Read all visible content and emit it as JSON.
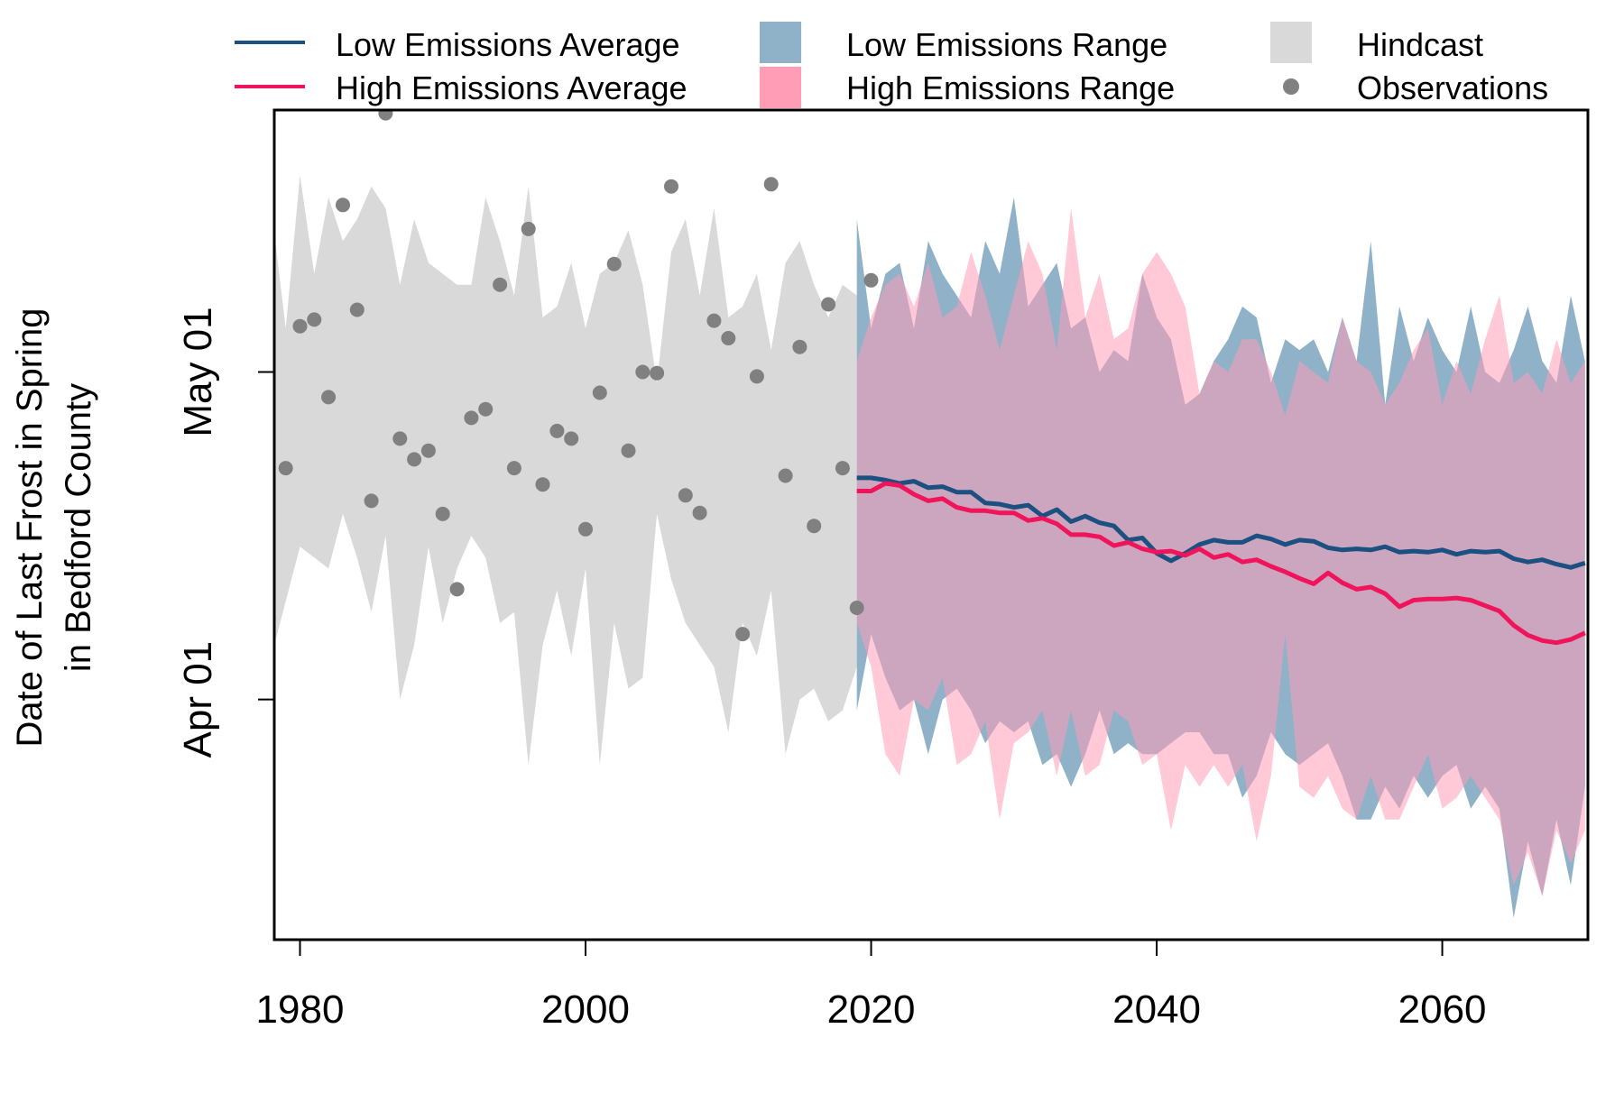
{
  "chart_data": {
    "type": "area",
    "ylabel_line1": "Date of Last Frost in Spring",
    "ylabel_line2": "in Bedford County",
    "xlabel": "",
    "xlim": [
      1978.2,
      2070.2
    ],
    "x_ticks": [
      1980,
      2000,
      2020,
      2040,
      2060
    ],
    "y_unit": "day of year",
    "ylim": [
      69,
      145
    ],
    "y_ticks": [
      {
        "value": 91,
        "label": "Apr 01"
      },
      {
        "value": 121,
        "label": "May 01"
      }
    ],
    "grid": false,
    "legend_position": "top",
    "legend": [
      {
        "label": "Low Emissions Average",
        "kind": "line",
        "color": "#1b5081"
      },
      {
        "label": "High Emissions Average",
        "kind": "line",
        "color": "#f0145a"
      },
      {
        "label": "Low Emissions Range",
        "kind": "fill",
        "color": "#8fb2c9"
      },
      {
        "label": "High Emissions Range",
        "kind": "fill",
        "color": "#ff9cb6"
      },
      {
        "label": "Hindcast",
        "kind": "fill",
        "color": "#d9d9d9"
      },
      {
        "label": "Observations",
        "kind": "point",
        "color": "#808080"
      }
    ],
    "hindcast": {
      "name": "Hindcast",
      "color": "#d9d9d9",
      "x": [
        1978,
        1979,
        1980,
        1981,
        1982,
        1983,
        1984,
        1985,
        1986,
        1987,
        1988,
        1989,
        1990,
        1991,
        1992,
        1993,
        1994,
        1995,
        1996,
        1997,
        1998,
        1999,
        2000,
        2001,
        2002,
        2003,
        2004,
        2005,
        2006,
        2007,
        2008,
        2009,
        2010,
        2011,
        2012,
        2013,
        2014,
        2015,
        2016,
        2017,
        2018,
        2019
      ],
      "upper": [
        136,
        125,
        139,
        130,
        137,
        133,
        135,
        138,
        136,
        129,
        135,
        131,
        130,
        129,
        129,
        137,
        133,
        128,
        138,
        126,
        127,
        131,
        125,
        130,
        131,
        134,
        129,
        120,
        132,
        135,
        128,
        136,
        126,
        127,
        130,
        123,
        131,
        133,
        129,
        126,
        129,
        128
      ],
      "lower": [
        95,
        100,
        105,
        104,
        103,
        108,
        104,
        99,
        106,
        91,
        96,
        105,
        98,
        103,
        106,
        104,
        98,
        99,
        85,
        96,
        101,
        95,
        103,
        85,
        98,
        92,
        93,
        108,
        102,
        98,
        96,
        94,
        88,
        98,
        95,
        101,
        86,
        91,
        92,
        89,
        90,
        94
      ]
    },
    "observations": {
      "name": "Observations",
      "color": "#808080",
      "x": [
        1979,
        1980,
        1981,
        1982,
        1983,
        1984,
        1985,
        1986,
        1987,
        1988,
        1989,
        1990,
        1991,
        1992,
        1993,
        1994,
        1995,
        1996,
        1997,
        1998,
        1999,
        2000,
        2001,
        2002,
        2003,
        2004,
        2005,
        2006,
        2007,
        2008,
        2009,
        2010,
        2011,
        2012,
        2013,
        2014,
        2015,
        2016,
        2017,
        2018,
        2019,
        2020
      ],
      "y": [
        112.2,
        125.2,
        125.8,
        118.7,
        136.3,
        126.7,
        109.2,
        144.7,
        114.9,
        113.0,
        113.8,
        108.0,
        101.1,
        116.8,
        117.6,
        129.0,
        112.2,
        134.1,
        110.7,
        115.6,
        114.9,
        106.6,
        119.1,
        130.9,
        113.8,
        121.0,
        120.9,
        138.0,
        109.7,
        108.1,
        125.7,
        124.1,
        97.0,
        120.6,
        138.2,
        111.5,
        123.3,
        106.9,
        127.2,
        112.2,
        99.4,
        129.4
      ]
    },
    "low_range": {
      "name": "Low Emissions Range",
      "color": "#8fb2c9",
      "x": [
        2019,
        2020,
        2021,
        2022,
        2023,
        2024,
        2025,
        2026,
        2027,
        2028,
        2029,
        2030,
        2031,
        2032,
        2033,
        2034,
        2035,
        2036,
        2037,
        2038,
        2039,
        2040,
        2041,
        2042,
        2043,
        2044,
        2045,
        2046,
        2047,
        2048,
        2049,
        2050,
        2051,
        2052,
        2053,
        2054,
        2055,
        2056,
        2057,
        2058,
        2059,
        2060,
        2061,
        2062,
        2063,
        2064,
        2065,
        2066,
        2067,
        2068,
        2069,
        2070
      ],
      "upper": [
        135,
        125,
        130,
        131,
        125,
        133,
        130,
        128,
        126,
        133,
        130,
        137,
        127,
        129,
        131,
        125,
        126,
        121,
        123,
        122,
        130,
        126,
        124,
        118,
        119,
        122,
        124,
        127,
        126,
        120,
        124,
        123,
        124,
        121,
        126,
        122,
        133,
        118,
        127,
        122,
        126,
        123,
        121,
        127,
        121,
        120,
        123,
        127,
        122,
        120,
        128,
        122
      ],
      "lower": [
        90,
        97,
        93,
        90,
        91,
        86,
        91,
        92,
        90,
        87,
        89,
        88,
        89,
        85,
        86,
        83,
        86,
        90,
        86,
        87,
        86,
        86,
        87,
        88,
        88,
        86,
        86,
        82,
        84,
        88,
        86,
        85,
        86,
        87,
        84,
        80,
        80,
        83,
        81,
        84,
        82,
        84,
        85,
        81,
        83,
        81,
        71,
        78,
        73,
        80,
        74,
        83
      ]
    },
    "high_range": {
      "name": "High Emissions Range",
      "color": "#ff9cb6",
      "x": [
        2019,
        2020,
        2021,
        2022,
        2023,
        2024,
        2025,
        2026,
        2027,
        2028,
        2029,
        2030,
        2031,
        2032,
        2033,
        2034,
        2035,
        2036,
        2037,
        2038,
        2039,
        2040,
        2041,
        2042,
        2043,
        2044,
        2045,
        2046,
        2047,
        2048,
        2049,
        2050,
        2051,
        2052,
        2053,
        2054,
        2055,
        2056,
        2057,
        2058,
        2059,
        2060,
        2061,
        2062,
        2063,
        2064,
        2065,
        2066,
        2067,
        2068,
        2069,
        2070
      ],
      "upper": [
        122,
        126,
        129,
        130,
        127,
        131,
        126,
        127,
        132,
        128,
        123,
        128,
        133,
        130,
        123,
        136,
        126,
        130,
        124,
        125,
        130,
        132,
        130,
        127,
        119,
        122,
        121,
        124,
        124,
        121,
        117,
        122,
        121,
        120,
        126,
        122,
        121,
        118,
        120,
        123,
        125,
        118,
        122,
        119,
        124,
        128,
        120,
        121,
        119,
        124,
        120,
        122
      ],
      "lower": [
        98,
        94,
        86,
        84,
        91,
        90,
        93,
        85,
        86,
        89,
        80,
        87,
        88,
        90,
        84,
        90,
        84,
        85,
        90,
        89,
        85,
        86,
        79,
        85,
        83,
        85,
        83,
        85,
        78,
        84,
        97,
        83,
        82,
        84,
        81,
        80,
        84,
        80,
        80,
        83,
        86,
        81,
        82,
        84,
        82,
        80,
        74,
        77,
        73,
        79,
        76,
        79
      ]
    },
    "low_average": {
      "name": "Low Emissions Average",
      "color": "#1b5081",
      "x": [
        2019,
        2020,
        2021,
        2022,
        2023,
        2024,
        2025,
        2026,
        2027,
        2028,
        2029,
        2030,
        2031,
        2032,
        2033,
        2034,
        2035,
        2036,
        2037,
        2038,
        2039,
        2040,
        2041,
        2042,
        2043,
        2044,
        2045,
        2046,
        2047,
        2048,
        2049,
        2050,
        2051,
        2052,
        2053,
        2054,
        2055,
        2056,
        2057,
        2058,
        2059,
        2060,
        2061,
        2062,
        2063,
        2064,
        2065,
        2066,
        2067,
        2068,
        2069,
        2070
      ],
      "y": [
        111.3,
        111.3,
        111.1,
        110.8,
        111.0,
        110.4,
        110.5,
        110.0,
        110.0,
        109.0,
        108.9,
        108.6,
        108.8,
        107.8,
        108.4,
        107.3,
        107.8,
        107.2,
        106.9,
        105.6,
        105.8,
        104.4,
        103.7,
        104.4,
        105.2,
        105.6,
        105.4,
        105.4,
        106.0,
        105.7,
        105.2,
        105.6,
        105.5,
        104.9,
        104.7,
        104.8,
        104.7,
        105.0,
        104.5,
        104.6,
        104.5,
        104.7,
        104.3,
        104.6,
        104.5,
        104.6,
        103.9,
        103.6,
        103.8,
        103.4,
        103.1,
        103.5
      ]
    },
    "high_average": {
      "name": "High Emissions Average",
      "color": "#f0145a",
      "x": [
        2019,
        2020,
        2021,
        2022,
        2023,
        2024,
        2025,
        2026,
        2027,
        2028,
        2029,
        2030,
        2031,
        2032,
        2033,
        2034,
        2035,
        2036,
        2037,
        2038,
        2039,
        2040,
        2041,
        2042,
        2043,
        2044,
        2045,
        2046,
        2047,
        2048,
        2049,
        2050,
        2051,
        2052,
        2053,
        2054,
        2055,
        2056,
        2057,
        2058,
        2059,
        2060,
        2061,
        2062,
        2063,
        2064,
        2065,
        2066,
        2067,
        2068,
        2069,
        2070
      ],
      "y": [
        110.1,
        110.1,
        110.8,
        110.6,
        109.8,
        109.2,
        109.4,
        108.6,
        108.3,
        108.3,
        108.1,
        108.1,
        107.4,
        107.6,
        107.1,
        106.1,
        106.1,
        105.9,
        105.1,
        105.4,
        104.8,
        104.5,
        104.6,
        104.2,
        104.8,
        104.0,
        104.3,
        103.6,
        103.8,
        103.2,
        102.7,
        102.1,
        101.6,
        102.6,
        101.7,
        101.1,
        101.3,
        100.7,
        99.5,
        100.1,
        100.2,
        100.2,
        100.3,
        100.1,
        99.6,
        99.1,
        97.8,
        96.9,
        96.4,
        96.2,
        96.5,
        97.1
      ]
    }
  }
}
